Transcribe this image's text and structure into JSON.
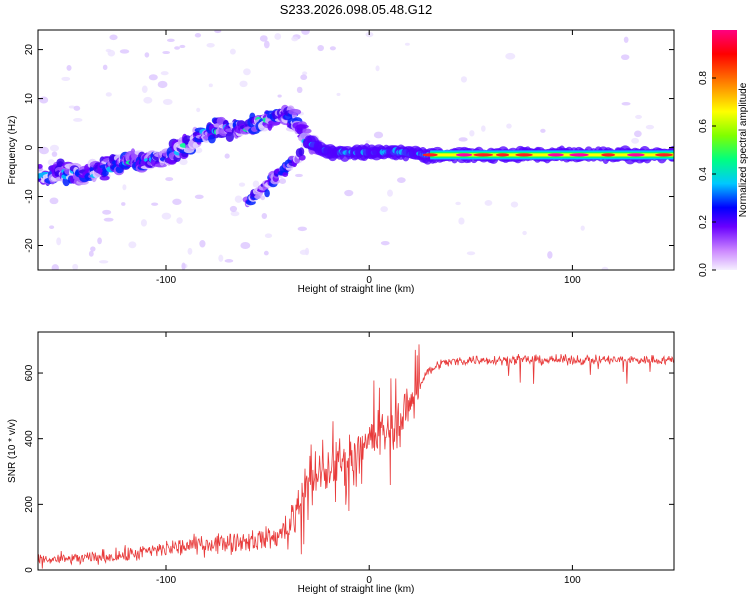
{
  "title": "S233.2026.098.05.48.G12",
  "chart_data": [
    {
      "type": "heatmap",
      "name": "spectrogram",
      "xlabel": "Height of straight line (km)",
      "ylabel": "Frequency (Hz)",
      "xlim": [
        -163,
        150
      ],
      "ylim": [
        -25,
        24
      ],
      "x_ticks": [
        -100,
        0,
        100
      ],
      "x_tick_labels": [
        "-100",
        "0",
        "100"
      ],
      "y_ticks": [
        -20,
        -10,
        0,
        10,
        20
      ],
      "y_tick_labels": [
        "-20",
        "-10",
        "0",
        "10",
        "20"
      ],
      "ridge": [
        {
          "x": -163,
          "f": -6
        },
        {
          "x": -150,
          "f": -5
        },
        {
          "x": -140,
          "f": -6
        },
        {
          "x": -130,
          "f": -4
        },
        {
          "x": -120,
          "f": -3
        },
        {
          "x": -110,
          "f": -3
        },
        {
          "x": -100,
          "f": -2
        },
        {
          "x": -90,
          "f": 0
        },
        {
          "x": -80,
          "f": 3
        },
        {
          "x": -70,
          "f": 4
        },
        {
          "x": -60,
          "f": 4
        },
        {
          "x": -50,
          "f": 6
        },
        {
          "x": -40,
          "f": 7
        },
        {
          "x": -30,
          "f": 1
        },
        {
          "x": -20,
          "f": -1
        },
        {
          "x": -10,
          "f": -1
        },
        {
          "x": 0,
          "f": -1
        },
        {
          "x": 10,
          "f": -1
        },
        {
          "x": 20,
          "f": -1
        },
        {
          "x": 30,
          "f": -1.5
        },
        {
          "x": 150,
          "f": -1.5
        }
      ],
      "secondary_ridge": [
        {
          "x": -60,
          "f": -11
        },
        {
          "x": -50,
          "f": -8
        },
        {
          "x": -40,
          "f": -4
        },
        {
          "x": -33,
          "f": -1
        }
      ],
      "strong_band": {
        "x_start": 30,
        "x_end": 150,
        "f": -1.5
      }
    },
    {
      "type": "line",
      "name": "snr",
      "xlabel": "Height of straight line (km)",
      "ylabel": "SNR (10 * v/v)",
      "xlim": [
        -163,
        150
      ],
      "ylim": [
        0,
        725
      ],
      "x_ticks": [
        -100,
        0,
        100
      ],
      "x_tick_labels": [
        "-100",
        "0",
        "100"
      ],
      "y_ticks": [
        0,
        200,
        400,
        600
      ],
      "y_tick_labels": [
        "0",
        "200",
        "400",
        "600"
      ],
      "color": "#e83a3a",
      "trend": [
        {
          "x": -163,
          "y": 30
        },
        {
          "x": -140,
          "y": 35
        },
        {
          "x": -120,
          "y": 45
        },
        {
          "x": -100,
          "y": 65
        },
        {
          "x": -80,
          "y": 80
        },
        {
          "x": -60,
          "y": 90
        },
        {
          "x": -45,
          "y": 100
        },
        {
          "x": -38,
          "y": 150
        },
        {
          "x": -32,
          "y": 250
        },
        {
          "x": -25,
          "y": 280
        },
        {
          "x": -15,
          "y": 320
        },
        {
          "x": -5,
          "y": 380
        },
        {
          "x": 5,
          "y": 410
        },
        {
          "x": 15,
          "y": 450
        },
        {
          "x": 22,
          "y": 530
        },
        {
          "x": 28,
          "y": 600
        },
        {
          "x": 35,
          "y": 630
        },
        {
          "x": 50,
          "y": 640
        },
        {
          "x": 80,
          "y": 640
        },
        {
          "x": 100,
          "y": 640
        },
        {
          "x": 120,
          "y": 640
        },
        {
          "x": 150,
          "y": 640
        }
      ]
    }
  ],
  "colorbar": {
    "label": "Normalized spectral amplitude",
    "ticks": [
      "0.0",
      "0.2",
      "0.4",
      "0.6",
      "0.8"
    ],
    "range": [
      0,
      1
    ],
    "colors": [
      "#f5f0ff",
      "#cc88ff",
      "#6a00ff",
      "#0000ff",
      "#00c8ff",
      "#00ff80",
      "#80ff00",
      "#ffff00",
      "#ff8000",
      "#ff0000",
      "#ff0080"
    ]
  }
}
